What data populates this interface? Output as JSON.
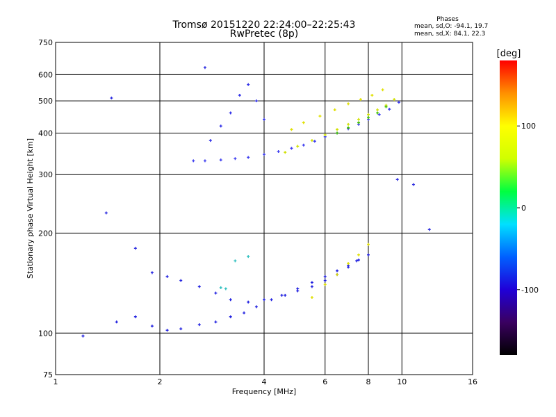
{
  "chart_data": {
    "type": "scatter",
    "title": "Tromsø 20151220 22:24:00–22:25:43",
    "subtitle": "RwPretec (8p)",
    "xlabel": "Frequency [MHz]",
    "ylabel": "Stationary phase Virtual Height [km]",
    "x_scale": "log",
    "y_scale": "log",
    "xlim": [
      1,
      16
    ],
    "ylim": [
      75,
      750
    ],
    "x_ticks": [
      1,
      2,
      4,
      6,
      8,
      10,
      16
    ],
    "y_ticks": [
      75,
      100,
      200,
      300,
      400,
      500,
      600,
      750
    ],
    "grid": true,
    "phase_stats": {
      "heading": "Phases",
      "o_line": "mean, sd,O: -94.1, 19.7",
      "x_line": "mean, sd,X:  84.1, 22.3"
    },
    "colorbar": {
      "label": "[deg]",
      "range": [
        -180,
        180
      ],
      "ticks": [
        100,
        0,
        -100
      ],
      "colors": [
        "#000000",
        "#3a0060",
        "#2000d8",
        "#0060ff",
        "#00e0ff",
        "#00ff40",
        "#d0ff00",
        "#ffff00",
        "#ff9000",
        "#ff0000"
      ]
    },
    "series": [
      {
        "color": "#2020e0",
        "x": [
          1.2,
          1.5,
          1.7,
          1.9,
          2.1,
          2.3,
          2.6,
          2.9,
          3.2,
          3.5,
          3.8,
          4.2,
          4.6,
          5.0,
          5.5,
          6.0,
          6.5,
          7.0,
          7.4
        ],
        "y": [
          98,
          108,
          112,
          105,
          102,
          103,
          106,
          108,
          112,
          115,
          120,
          126,
          130,
          134,
          138,
          144,
          150,
          158,
          165
        ]
      },
      {
        "color": "#2020e0",
        "x": [
          1.9,
          2.1,
          2.3,
          2.6,
          2.9,
          3.2,
          3.6,
          4.0,
          4.5,
          5.0,
          5.5,
          6.0,
          6.5,
          7.0,
          7.5,
          8.0
        ],
        "y": [
          152,
          148,
          144,
          138,
          132,
          126,
          124,
          126,
          130,
          136,
          142,
          148,
          154,
          160,
          166,
          172
        ]
      },
      {
        "color": "#4040f0",
        "x": [
          2.5,
          2.7,
          3.0,
          3.3,
          3.6,
          4.0,
          4.4,
          4.8,
          5.2,
          5.6,
          6.0,
          6.5,
          7.0,
          7.5,
          8.0,
          8.6,
          9.2,
          9.8
        ],
        "y": [
          330,
          330,
          332,
          335,
          338,
          345,
          352,
          360,
          368,
          378,
          390,
          400,
          412,
          425,
          440,
          455,
          472,
          495
        ]
      },
      {
        "color": "#3030e8",
        "x": [
          2.8,
          3.0,
          3.2,
          3.4,
          3.6,
          3.8,
          4.0
        ],
        "y": [
          380,
          420,
          460,
          520,
          560,
          500,
          440
        ]
      },
      {
        "color": "#d0e000",
        "x": [
          4.6,
          5.0,
          5.5,
          6.0,
          6.5,
          7.0,
          7.5,
          8.0,
          8.5,
          9.0,
          9.5
        ],
        "y": [
          350,
          365,
          380,
          395,
          410,
          425,
          440,
          455,
          470,
          485,
          505
        ]
      },
      {
        "color": "#e0e000",
        "x": [
          4.8,
          5.2,
          5.8,
          6.4,
          7.0,
          7.6,
          8.2,
          8.8
        ],
        "y": [
          410,
          430,
          450,
          470,
          490,
          505,
          520,
          540
        ]
      },
      {
        "color": "#40c000",
        "x": [
          6.5,
          7.0,
          7.5,
          8.0,
          8.5,
          9.0
        ],
        "y": [
          400,
          415,
          430,
          445,
          460,
          480
        ]
      },
      {
        "color": "#e0e000",
        "x": [
          5.5,
          6.0,
          6.5,
          7.0,
          7.5,
          8.0
        ],
        "y": [
          128,
          140,
          150,
          162,
          172,
          185
        ]
      },
      {
        "color": "#30c0c0",
        "x": [
          3.0,
          3.1,
          3.3,
          3.6
        ],
        "y": [
          137,
          136,
          165,
          170
        ]
      },
      {
        "color": "#3030e0",
        "x": [
          1.2,
          1.4,
          1.45,
          1.7,
          2.7,
          9.7,
          10.8,
          12.0
        ],
        "y": [
          98,
          230,
          510,
          180,
          630,
          290,
          280,
          205
        ]
      }
    ]
  }
}
